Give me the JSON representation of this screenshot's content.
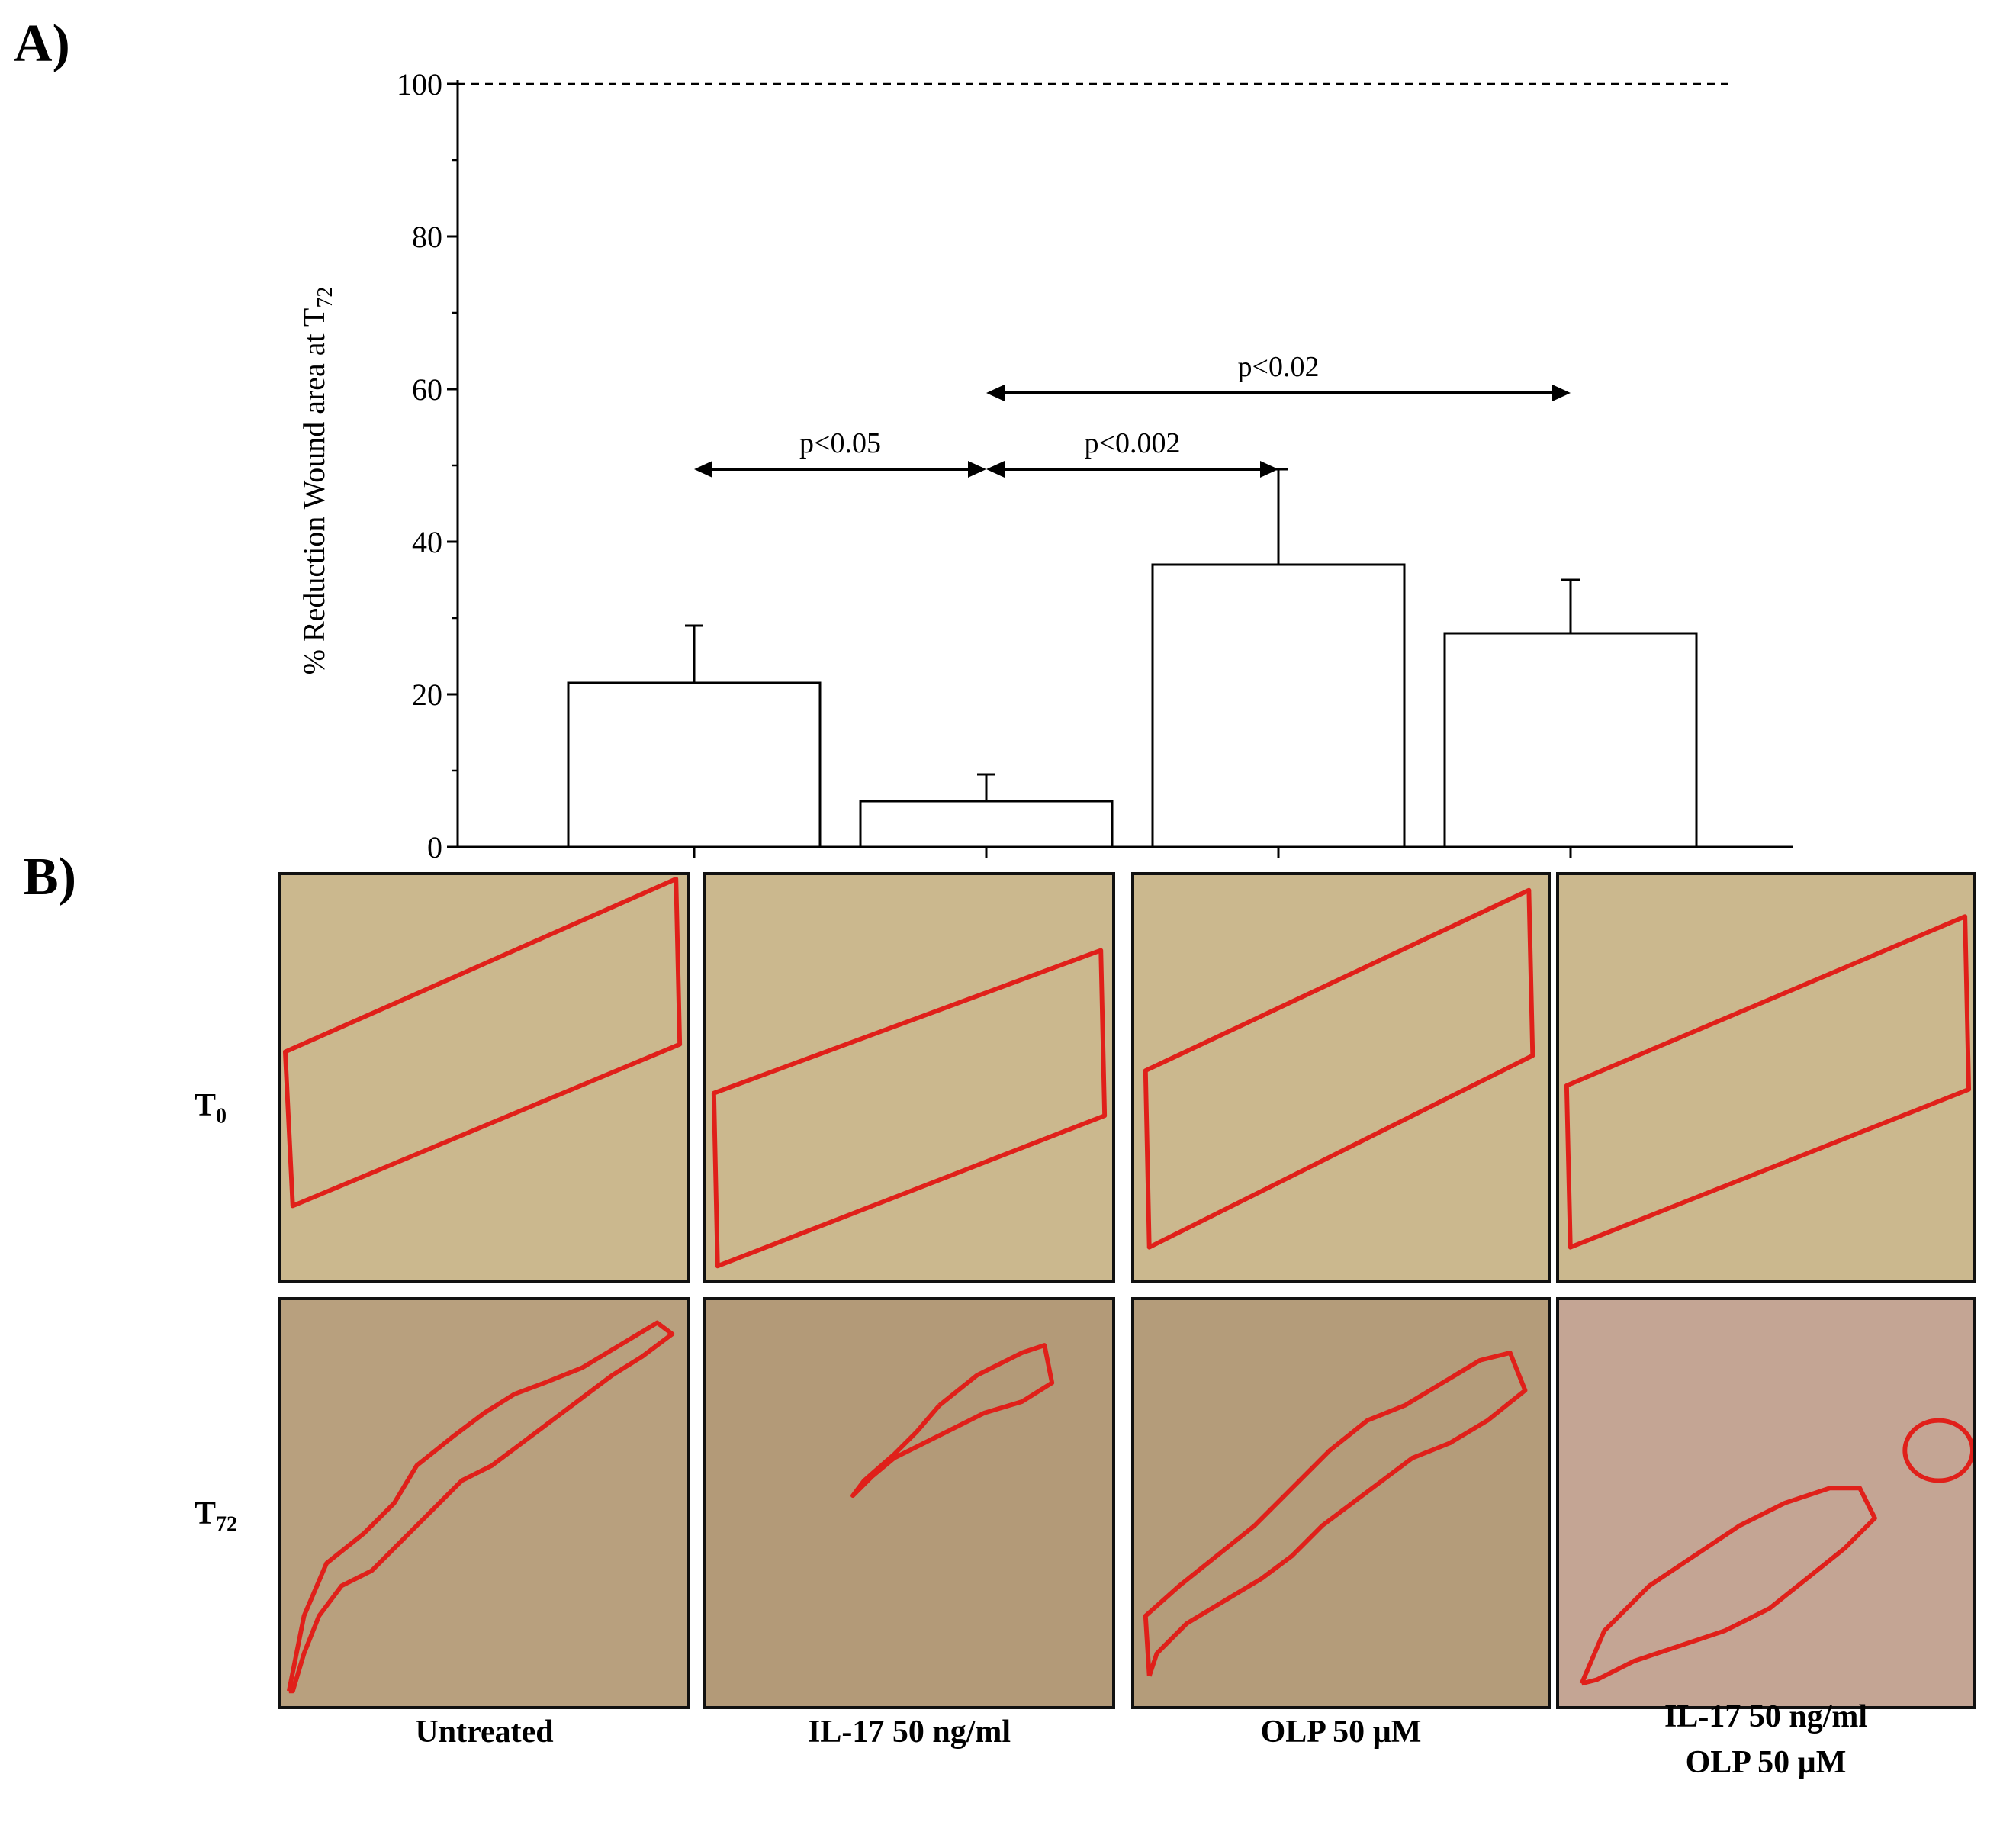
{
  "panel_a_label": "A)",
  "panel_b_label": "B)",
  "chart_data": {
    "type": "bar",
    "ylabel_main": "% Reduction Wound area at T",
    "ylabel_sub": "72",
    "ylim": [
      0,
      100
    ],
    "yticks": [
      0,
      20,
      40,
      60,
      80,
      100
    ],
    "reference_line": 100,
    "categories": [
      "Untreated",
      "IL-17 50 ng/ml",
      "OLP 50 µM",
      "IL-17 50 ng/ml + OLP 50 µM"
    ],
    "values": [
      21.5,
      6,
      37,
      28
    ],
    "errors": [
      7.5,
      3.5,
      12.5,
      7
    ],
    "comparisons": [
      {
        "from": 0,
        "to": 1,
        "label": "p<0.05",
        "y": 49.5
      },
      {
        "from": 1,
        "to": 2,
        "label": "p<0.002",
        "y": 49.5
      },
      {
        "from": 1,
        "to": 3,
        "label": "p<0.02",
        "y": 59.5
      }
    ]
  },
  "micrographs": {
    "row_labels": [
      {
        "main": "T",
        "sub": "0"
      },
      {
        "main": "T",
        "sub": "72"
      }
    ],
    "columns": [
      {
        "line1": "Untreated",
        "line2": ""
      },
      {
        "line1": "IL-17 50 ng/ml",
        "line2": ""
      },
      {
        "line1": "OLP 50 µM",
        "line2": ""
      },
      {
        "line1": "IL-17 50 ng/ml",
        "line2": "OLP 50 µM"
      }
    ],
    "outline_color": "#e0201a",
    "t0_color": "#cbb88e",
    "t72_colors": [
      "#b8a07e",
      "#b39a78",
      "#b49c7a",
      "#c4a594"
    ]
  }
}
